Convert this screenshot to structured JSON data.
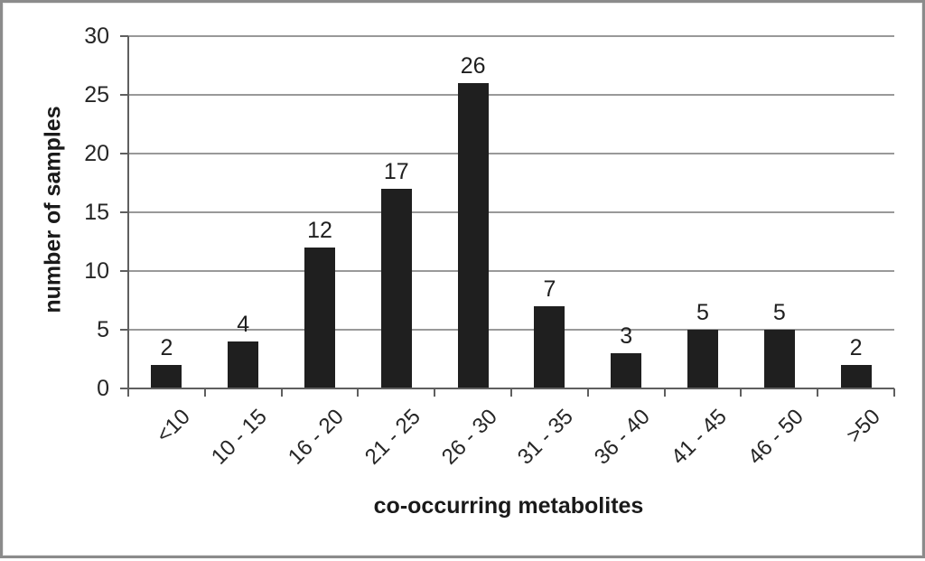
{
  "figure": {
    "background_color": "#ffffff",
    "frame_border_color": "#8b8b8b"
  },
  "chart_data": {
    "type": "bar",
    "title": "",
    "categories": [
      "<10",
      "10 - 15",
      "16 - 20",
      "21 - 25",
      "26 - 30",
      "31 - 35",
      "36 - 40",
      "41 - 45",
      "46 - 50",
      ">50"
    ],
    "values": [
      2,
      4,
      12,
      17,
      26,
      7,
      3,
      5,
      5,
      2
    ],
    "data_labels": [
      2,
      4,
      12,
      17,
      26,
      7,
      3,
      5,
      5,
      2
    ],
    "xlabel": "co-occurring metabolites",
    "ylabel": "number of samples",
    "ylim": [
      0,
      30
    ],
    "yticks": [
      0,
      5,
      10,
      15,
      20,
      25,
      30
    ],
    "x_tick_rotation_deg": -45,
    "grid": "horizontal",
    "legend": "none",
    "bar_color": "#1f1f1f",
    "gridline_color": "#999999",
    "axis_color": "#5f5f5f",
    "text_color": "#262626"
  }
}
